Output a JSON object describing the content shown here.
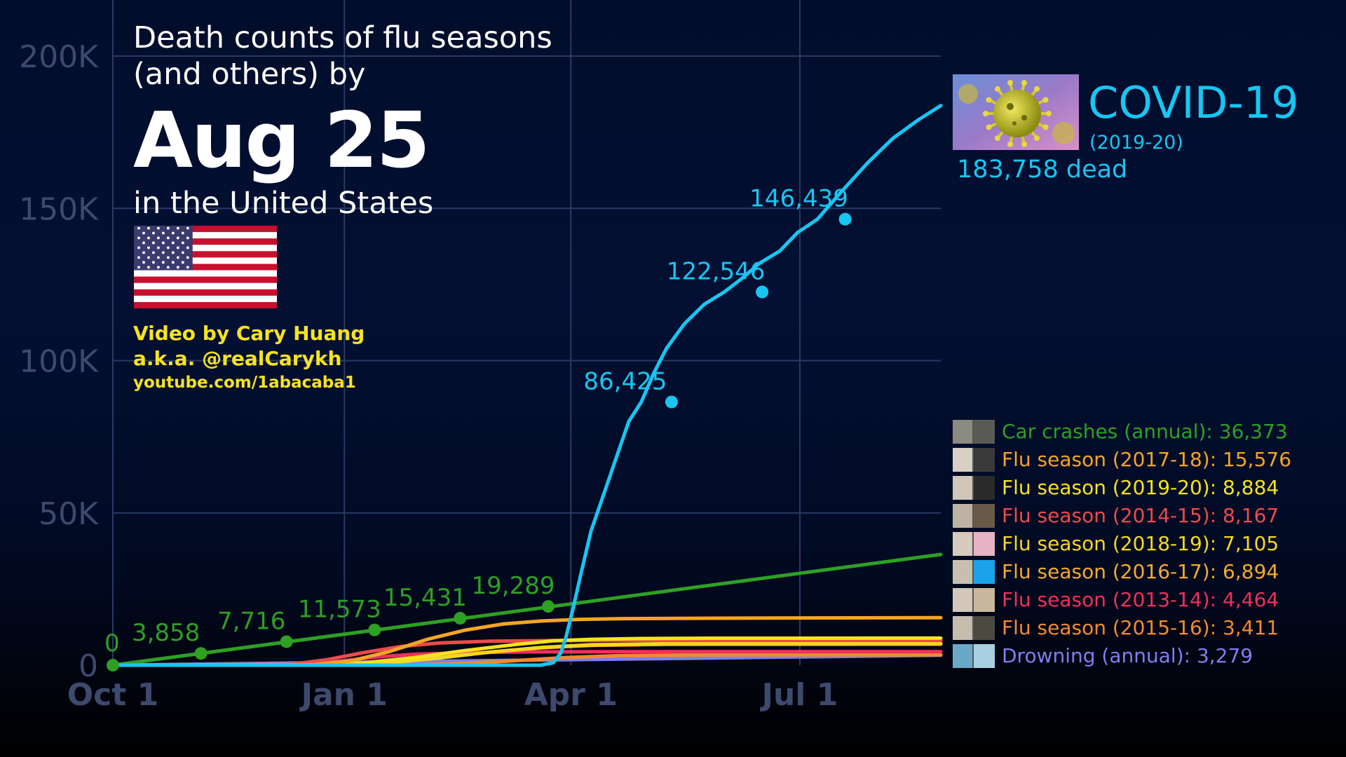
{
  "title": {
    "line1": "Death counts of flu seasons",
    "line2": "(and others) by",
    "date": "Aug 25",
    "subtitle": "in the United States"
  },
  "credits": {
    "line1": "Video by Cary Huang",
    "line2": "a.k.a. @realCarykh",
    "line3": "youtube.com/1abacaba1"
  },
  "covid": {
    "name": "COVID-19",
    "season": "(2019-20)",
    "count_label": "183,758 dead",
    "color": "#17c6f2"
  },
  "legend": [
    {
      "label": "Car crashes (annual): 36,373",
      "color": "#2ea024",
      "thumb": [
        "#8a8a80",
        "#5a5a55"
      ]
    },
    {
      "label": "Flu season (2017-18): 15,576",
      "color": "#f5a524",
      "thumb": [
        "#d8d0c4",
        "#3a3a3a"
      ]
    },
    {
      "label": "Flu season (2019-20): 8,884",
      "color": "#f6e31e",
      "thumb": [
        "#cfc6b8",
        "#2a2a2a"
      ]
    },
    {
      "label": "Flu season (2014-15): 8,167",
      "color": "#ef4a4a",
      "thumb": [
        "#bfb2a2",
        "#6a5a4a"
      ]
    },
    {
      "label": "Flu season (2018-19): 7,105",
      "color": "#f6d81e",
      "thumb": [
        "#d6cabc",
        "#e6b4c4"
      ]
    },
    {
      "label": "Flu season (2016-17): 6,894",
      "color": "#f5ab2a",
      "thumb": [
        "#c8bfb0",
        "#1aa3e8"
      ]
    },
    {
      "label": "Flu season (2013-14): 4,464",
      "color": "#f0305c",
      "thumb": [
        "#d2c8ba",
        "#c8b89a"
      ]
    },
    {
      "label": "Flu season (2015-16): 3,411",
      "color": "#f58a2a",
      "thumb": [
        "#c6bcae",
        "#4a4a40"
      ]
    },
    {
      "label": "Drowning (annual): 3,279",
      "color": "#7f7ff0",
      "thumb": [
        "#6aa8c8",
        "#a8d0e0"
      ]
    }
  ],
  "chart_data": {
    "type": "line",
    "x_axis_labels": [
      "Oct 1",
      "Jan 1",
      "Apr 1",
      "Jul 1"
    ],
    "x_axis_label_days": [
      0,
      92,
      182,
      273
    ],
    "xlim_days": [
      0,
      329
    ],
    "ylim": [
      0,
      200000
    ],
    "y_ticks": [
      0,
      50000,
      100000,
      150000,
      200000
    ],
    "y_tick_labels": [
      "0",
      "50K",
      "100K",
      "150K",
      "200K"
    ],
    "grid": true,
    "series": [
      {
        "name": "COVID-19",
        "color": "#17c6f2",
        "x": [
          0,
          170,
          175,
          178,
          180,
          183,
          186,
          190,
          195,
          200,
          205,
          210,
          215,
          220,
          227,
          235,
          243,
          250,
          257,
          265,
          272,
          280,
          289,
          300,
          310,
          320,
          329
        ],
        "y": [
          0,
          0,
          800,
          4000,
          9000,
          19000,
          30000,
          44000,
          56000,
          68000,
          80000,
          86425,
          96000,
          104000,
          112000,
          118500,
          122546,
          127000,
          132000,
          136000,
          142000,
          146439,
          155000,
          165000,
          173000,
          179000,
          183758
        ],
        "markers": [
          {
            "x": 222,
            "y": 86425,
            "label": "86,425"
          },
          {
            "x": 258,
            "y": 122546,
            "label": "122,546"
          },
          {
            "x": 291,
            "y": 146439,
            "label": "146,439"
          }
        ]
      },
      {
        "name": "Car crashes (annual)",
        "color": "#2ea024",
        "x": [
          0,
          329
        ],
        "y": [
          0,
          36373
        ],
        "markers": [
          {
            "x": 0,
            "y": 0,
            "label": "0"
          },
          {
            "x": 35,
            "y": 3858,
            "label": "3,858"
          },
          {
            "x": 69,
            "y": 7716,
            "label": "7,716"
          },
          {
            "x": 104,
            "y": 11573,
            "label": "11,573"
          },
          {
            "x": 138,
            "y": 15431,
            "label": "15,431"
          },
          {
            "x": 173,
            "y": 19289,
            "label": "19,289"
          }
        ]
      },
      {
        "name": "Flu season (2017-18)",
        "color": "#f5a524",
        "x": [
          0,
          80,
          95,
          110,
          125,
          140,
          155,
          170,
          185,
          200,
          230,
          260,
          329
        ],
        "y": [
          0,
          200,
          1500,
          4500,
          8500,
          11500,
          13500,
          14500,
          15000,
          15250,
          15400,
          15500,
          15576
        ]
      },
      {
        "name": "Flu season (2019-20)",
        "color": "#f6e31e",
        "x": [
          0,
          80,
          100,
          120,
          140,
          160,
          175,
          190,
          210,
          240,
          329
        ],
        "y": [
          0,
          100,
          800,
          2500,
          4800,
          6800,
          8000,
          8500,
          8750,
          8850,
          8884
        ]
      },
      {
        "name": "Flu season (2014-15)",
        "color": "#ef4a4a",
        "x": [
          0,
          70,
          85,
          100,
          115,
          130,
          150,
          175,
          210,
          329
        ],
        "y": [
          0,
          200,
          1800,
          4200,
          6200,
          7300,
          7900,
          8080,
          8150,
          8167
        ]
      },
      {
        "name": "Flu season (2018-19)",
        "color": "#f6d81e",
        "x": [
          0,
          90,
          110,
          130,
          150,
          170,
          190,
          220,
          329
        ],
        "y": [
          0,
          100,
          800,
          2400,
          4300,
          5800,
          6700,
          7050,
          7105
        ]
      },
      {
        "name": "Flu season (2016-17)",
        "color": "#f5ab2a",
        "x": [
          0,
          90,
          110,
          130,
          150,
          170,
          190,
          220,
          329
        ],
        "y": [
          0,
          100,
          900,
          2600,
          4300,
          5700,
          6500,
          6850,
          6894
        ]
      },
      {
        "name": "Flu season (2013-14)",
        "color": "#f0305c",
        "x": [
          0,
          70,
          90,
          105,
          120,
          140,
          165,
          200,
          329
        ],
        "y": [
          0,
          200,
          1300,
          2700,
          3600,
          4100,
          4380,
          4450,
          4464
        ]
      },
      {
        "name": "Flu season (2015-16)",
        "color": "#f58a2a",
        "x": [
          0,
          120,
          140,
          160,
          180,
          200,
          230,
          329
        ],
        "y": [
          0,
          100,
          600,
          1500,
          2500,
          3100,
          3350,
          3411
        ]
      },
      {
        "name": "Drowning (annual)",
        "color": "#7f7ff0",
        "x": [
          0,
          329
        ],
        "y": [
          0,
          3279
        ]
      }
    ]
  }
}
